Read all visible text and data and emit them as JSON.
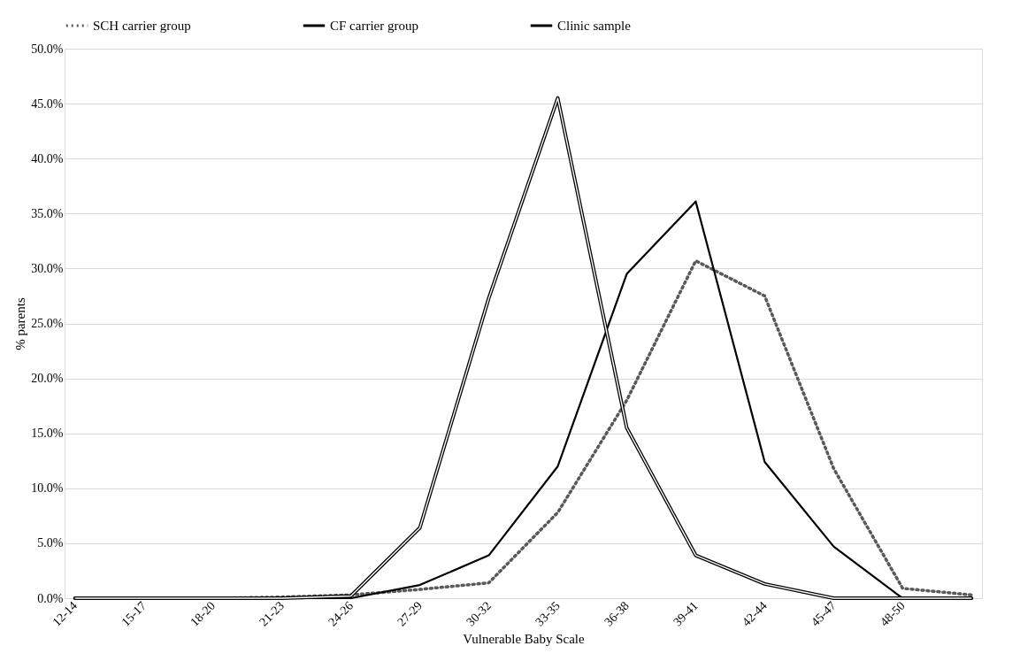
{
  "chart_data": {
    "type": "line",
    "xlabel": "Vulnerable Baby Scale",
    "ylabel": "% parents",
    "categories": [
      "12-14",
      "15-17",
      "18-20",
      "21-23",
      "24-26",
      "27-29",
      "30-32",
      "33-35",
      "36-38",
      "39-41",
      "42-44",
      "45-47",
      "48-50",
      null
    ],
    "series": [
      {
        "name": "SCH carrier group",
        "color": "#595959",
        "line_style": "dotted",
        "values": [
          0,
          0,
          0,
          0.1,
          0.3,
          0.8,
          1.4,
          7.8,
          18.0,
          30.7,
          27.5,
          11.8,
          0.9,
          0.3
        ]
      },
      {
        "name": "CF carrier group",
        "color": "#000000",
        "line_style": "solid",
        "values": [
          0,
          0,
          0,
          0,
          0,
          1.2,
          3.9,
          12.0,
          29.5,
          36.1,
          12.4,
          4.7,
          0,
          0
        ]
      },
      {
        "name": "Clinic sample",
        "color": "#000000",
        "line_style": "solid",
        "values": [
          0,
          0,
          0,
          0,
          0.2,
          6.4,
          27.3,
          45.5,
          15.5,
          3.9,
          1.3,
          0,
          0,
          0
        ]
      }
    ],
    "ylim": [
      0,
      50
    ],
    "yticks": [
      {
        "value": 0,
        "label": "0.0%"
      },
      {
        "value": 5,
        "label": "5.0%"
      },
      {
        "value": 10,
        "label": "10.0%"
      },
      {
        "value": 15,
        "label": "15.0%"
      },
      {
        "value": 20,
        "label": "20.0%"
      },
      {
        "value": 25,
        "label": "25.0%"
      },
      {
        "value": 30,
        "label": "30.0%"
      },
      {
        "value": 35,
        "label": "35.0%"
      },
      {
        "value": 40,
        "label": "40.0%"
      },
      {
        "value": 45,
        "label": "45.0%"
      },
      {
        "value": 50,
        "label": "50.0%"
      }
    ],
    "grid": "y",
    "legend": "top"
  }
}
